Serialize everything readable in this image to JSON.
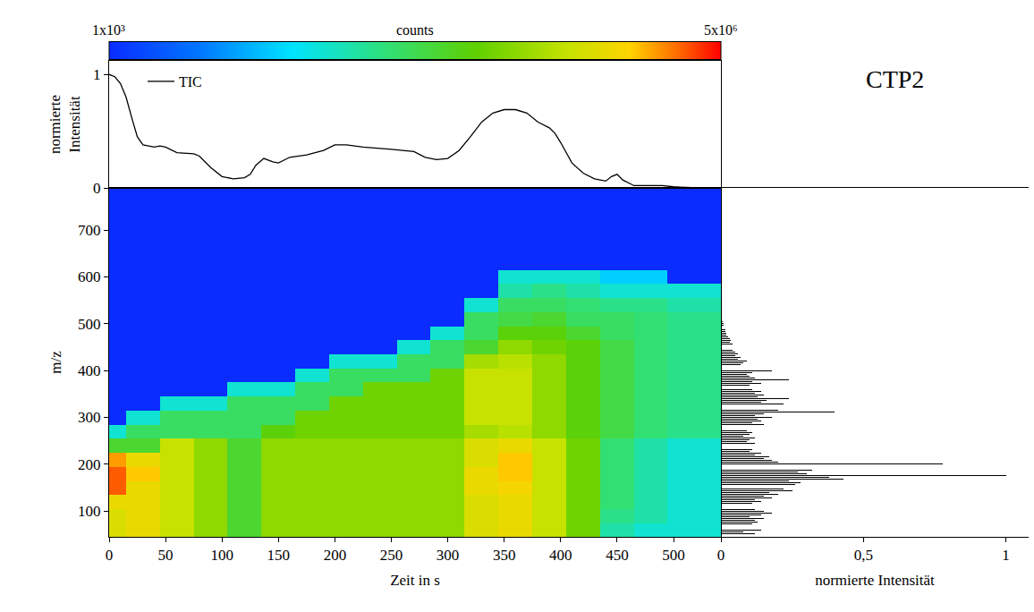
{
  "chart_data": [
    {
      "type": "line",
      "y_label": "normierte Intensität",
      "xlim": [
        0,
        542
      ],
      "ylim": [
        0,
        1.12
      ],
      "yticks": [
        0,
        1
      ],
      "tick_labels": "y",
      "legend": "top left",
      "series": [
        {
          "name": "TIC",
          "color": "#000000",
          "x": [
            0,
            5,
            10,
            15,
            20,
            25,
            30,
            40,
            45,
            50,
            60,
            70,
            75,
            80,
            90,
            100,
            110,
            120,
            125,
            130,
            137,
            145,
            150,
            160,
            175,
            190,
            200,
            210,
            225,
            250,
            270,
            280,
            290,
            300,
            310,
            320,
            330,
            340,
            350,
            360,
            370,
            380,
            390,
            395,
            400,
            410,
            420,
            430,
            440,
            445,
            450,
            455,
            465,
            480,
            490,
            500,
            520,
            540
          ],
          "values": [
            1,
            0.98,
            0.92,
            0.8,
            0.62,
            0.45,
            0.38,
            0.36,
            0.37,
            0.36,
            0.31,
            0.3,
            0.3,
            0.28,
            0.18,
            0.1,
            0.08,
            0.09,
            0.12,
            0.2,
            0.26,
            0.23,
            0.22,
            0.27,
            0.29,
            0.33,
            0.38,
            0.38,
            0.36,
            0.34,
            0.32,
            0.27,
            0.25,
            0.26,
            0.33,
            0.45,
            0.58,
            0.66,
            0.69,
            0.69,
            0.66,
            0.58,
            0.53,
            0.48,
            0.4,
            0.22,
            0.13,
            0.08,
            0.06,
            0.1,
            0.12,
            0.07,
            0.02,
            0.02,
            0.02,
            0.01,
            0,
            0
          ]
        }
      ]
    },
    {
      "type": "heatmap",
      "title": "CTP2",
      "x_label": "Zeit in s",
      "y_label": "m/z",
      "xlim": [
        0,
        542
      ],
      "xticks": [
        0,
        50,
        100,
        150,
        200,
        250,
        300,
        350,
        400,
        450,
        500
      ],
      "ylim": [
        45,
        790
      ],
      "yticks": [
        100,
        200,
        300,
        400,
        500,
        600,
        700
      ],
      "x": [
        0,
        30,
        60,
        90,
        120,
        150,
        180,
        210,
        240,
        270,
        300,
        330,
        360,
        390,
        420,
        450,
        480,
        510,
        540
      ],
      "y": [
        60,
        90,
        120,
        150,
        180,
        210,
        240,
        270,
        300,
        330,
        360,
        390,
        420,
        450,
        480,
        510,
        540,
        570,
        600,
        630,
        660,
        690,
        720,
        750,
        780
      ],
      "z": [
        [
          800000.0,
          1000000.0,
          600000.0,
          300000.0,
          100000.0,
          300000.0,
          300000.0,
          300000.0,
          300000.0,
          300000.0,
          300000.0,
          800000.0,
          1000000.0,
          600000.0,
          200000.0,
          30000.0,
          20000.0,
          20000.0,
          20000.0
        ],
        [
          800000.0,
          1000000.0,
          600000.0,
          300000.0,
          100000.0,
          300000.0,
          300000.0,
          300000.0,
          300000.0,
          300000.0,
          300000.0,
          800000.0,
          1000000.0,
          600000.0,
          200000.0,
          40000.0,
          30000.0,
          20000.0,
          20000.0
        ],
        [
          1000000.0,
          1000000.0,
          600000.0,
          300000.0,
          100000.0,
          300000.0,
          300000.0,
          300000.0,
          300000.0,
          300000.0,
          300000.0,
          800000.0,
          1000000.0,
          600000.0,
          200000.0,
          50000.0,
          30000.0,
          20000.0,
          20000.0
        ],
        [
          3000000.0,
          1000000.0,
          600000.0,
          300000.0,
          100000.0,
          300000.0,
          300000.0,
          300000.0,
          300000.0,
          300000.0,
          300000.0,
          1000000.0,
          1200000.0,
          600000.0,
          200000.0,
          50000.0,
          30000.0,
          20000.0,
          20000.0
        ],
        [
          3000000.0,
          1500000.0,
          600000.0,
          300000.0,
          100000.0,
          300000.0,
          300000.0,
          300000.0,
          300000.0,
          300000.0,
          300000.0,
          1000000.0,
          1500000.0,
          600000.0,
          200000.0,
          50000.0,
          30000.0,
          20000.0,
          20000.0
        ],
        [
          2000000.0,
          1000000.0,
          600000.0,
          300000.0,
          100000.0,
          300000.0,
          300000.0,
          300000.0,
          300000.0,
          300000.0,
          300000.0,
          800000.0,
          1500000.0,
          600000.0,
          200000.0,
          50000.0,
          30000.0,
          20000.0,
          20000.0
        ],
        [
          100000.0,
          100000.0,
          600000.0,
          300000.0,
          100000.0,
          300000.0,
          300000.0,
          300000.0,
          300000.0,
          300000.0,
          300000.0,
          800000.0,
          1000000.0,
          600000.0,
          200000.0,
          50000.0,
          30000.0,
          20000.0,
          20000.0
        ],
        [
          20000.0,
          60000.0,
          60000.0,
          60000.0,
          60000.0,
          150000.0,
          200000.0,
          200000.0,
          200000.0,
          200000.0,
          200000.0,
          400000.0,
          500000.0,
          300000.0,
          150000.0,
          80000.0,
          50000.0,
          40000.0,
          40000.0
        ],
        [
          1000.0,
          20000.0,
          60000.0,
          60000.0,
          60000.0,
          60000.0,
          200000.0,
          200000.0,
          200000.0,
          200000.0,
          200000.0,
          600000.0,
          600000.0,
          300000.0,
          150000.0,
          80000.0,
          50000.0,
          40000.0,
          40000.0
        ],
        [
          1000.0,
          1000.0,
          20000.0,
          20000.0,
          60000.0,
          60000.0,
          60000.0,
          200000.0,
          200000.0,
          200000.0,
          200000.0,
          600000.0,
          600000.0,
          300000.0,
          150000.0,
          80000.0,
          50000.0,
          40000.0,
          40000.0
        ],
        [
          1000.0,
          1000.0,
          1000.0,
          1000.0,
          20000.0,
          20000.0,
          60000.0,
          60000.0,
          200000.0,
          200000.0,
          200000.0,
          600000.0,
          600000.0,
          300000.0,
          150000.0,
          80000.0,
          50000.0,
          40000.0,
          40000.0
        ],
        [
          1000.0,
          1000.0,
          1000.0,
          1000.0,
          1000.0,
          1000.0,
          20000.0,
          60000.0,
          60000.0,
          60000.0,
          200000.0,
          600000.0,
          600000.0,
          300000.0,
          150000.0,
          80000.0,
          50000.0,
          40000.0,
          40000.0
        ],
        [
          1000.0,
          1000.0,
          1000.0,
          1000.0,
          1000.0,
          1000.0,
          1000.0,
          20000.0,
          20000.0,
          60000.0,
          60000.0,
          400000.0,
          500000.0,
          300000.0,
          150000.0,
          80000.0,
          50000.0,
          40000.0,
          40000.0
        ],
        [
          1000.0,
          1000.0,
          1000.0,
          1000.0,
          1000.0,
          1000.0,
          1000.0,
          1000.0,
          1000.0,
          20000.0,
          60000.0,
          100000.0,
          300000.0,
          200000.0,
          150000.0,
          80000.0,
          50000.0,
          40000.0,
          40000.0
        ],
        [
          1000.0,
          1000.0,
          1000.0,
          1000.0,
          1000.0,
          1000.0,
          1000.0,
          1000.0,
          1000.0,
          1000.0,
          20000.0,
          60000.0,
          150000.0,
          150000.0,
          100000.0,
          60000.0,
          50000.0,
          40000.0,
          40000.0
        ],
        [
          1000.0,
          1000.0,
          1000.0,
          1000.0,
          1000.0,
          1000.0,
          1000.0,
          1000.0,
          1000.0,
          1000.0,
          1000.0,
          60000.0,
          80000.0,
          100000.0,
          60000.0,
          60000.0,
          50000.0,
          40000.0,
          40000.0
        ],
        [
          1000.0,
          1000.0,
          1000.0,
          1000.0,
          1000.0,
          1000.0,
          1000.0,
          1000.0,
          1000.0,
          1000.0,
          1000.0,
          20000.0,
          60000.0,
          60000.0,
          50000.0,
          40000.0,
          40000.0,
          30000.0,
          30000.0
        ],
        [
          1000.0,
          1000.0,
          1000.0,
          1000.0,
          1000.0,
          1000.0,
          1000.0,
          1000.0,
          1000.0,
          1000.0,
          1000.0,
          1000.0,
          30000.0,
          40000.0,
          30000.0,
          20000.0,
          20000.0,
          20000.0,
          20000.0
        ],
        [
          1000.0,
          1000.0,
          1000.0,
          1000.0,
          1000.0,
          1000.0,
          1000.0,
          1000.0,
          1000.0,
          1000.0,
          1000.0,
          1000.0,
          20000.0,
          20000.0,
          20000.0,
          10000.0,
          10000.0,
          1000.0,
          1000.0
        ],
        [
          1000.0,
          1000.0,
          1000.0,
          1000.0,
          1000.0,
          1000.0,
          1000.0,
          1000.0,
          1000.0,
          1000.0,
          1000.0,
          1000.0,
          1000.0,
          1000.0,
          1000.0,
          1000.0,
          1000.0,
          1000.0,
          1000.0
        ],
        [
          1000.0,
          1000.0,
          1000.0,
          1000.0,
          1000.0,
          1000.0,
          1000.0,
          1000.0,
          1000.0,
          1000.0,
          1000.0,
          1000.0,
          1000.0,
          1000.0,
          1000.0,
          1000.0,
          1000.0,
          1000.0,
          1000.0
        ],
        [
          1000.0,
          1000.0,
          1000.0,
          1000.0,
          1000.0,
          1000.0,
          1000.0,
          1000.0,
          1000.0,
          1000.0,
          1000.0,
          1000.0,
          1000.0,
          1000.0,
          1000.0,
          1000.0,
          1000.0,
          1000.0,
          1000.0
        ],
        [
          1000.0,
          1000.0,
          1000.0,
          1000.0,
          1000.0,
          1000.0,
          1000.0,
          1000.0,
          1000.0,
          1000.0,
          1000.0,
          1000.0,
          1000.0,
          1000.0,
          1000.0,
          1000.0,
          1000.0,
          1000.0,
          1000.0
        ],
        [
          1000.0,
          1000.0,
          1000.0,
          1000.0,
          1000.0,
          1000.0,
          1000.0,
          1000.0,
          1000.0,
          1000.0,
          1000.0,
          1000.0,
          1000.0,
          1000.0,
          1000.0,
          1000.0,
          1000.0,
          1000.0,
          1000.0
        ],
        [
          1000.0,
          1000.0,
          1000.0,
          1000.0,
          1000.0,
          1000.0,
          1000.0,
          1000.0,
          1000.0,
          1000.0,
          1000.0,
          1000.0,
          1000.0,
          1000.0,
          1000.0,
          1000.0,
          1000.0,
          1000.0,
          1000.0
        ]
      ],
      "colorbar": {
        "title": "counts",
        "log": true,
        "range": [
          1000,
          5000000
        ],
        "ticks": [
          {
            "value": 1000,
            "label": "1x10³"
          },
          {
            "value": 5000000,
            "label": "5x10⁶"
          }
        ]
      }
    },
    {
      "type": "bar",
      "orientation": "horizontal",
      "color": "#000000",
      "x_label": "normierte Intensität",
      "xlim": [
        0,
        1.08
      ],
      "xticks": [
        0,
        {
          "value": 0.5,
          "label": "0,5"
        },
        1
      ],
      "ylim": [
        45,
        790
      ],
      "tick_labels": "x",
      "y": [
        52,
        56,
        60,
        64,
        68,
        72,
        76,
        80,
        84,
        88,
        92,
        96,
        100,
        104,
        108,
        112,
        116,
        120,
        124,
        128,
        132,
        136,
        140,
        144,
        148,
        152,
        156,
        160,
        164,
        168,
        172,
        176,
        180,
        184,
        188,
        192,
        196,
        200,
        204,
        208,
        212,
        216,
        220,
        224,
        228,
        232,
        236,
        240,
        244,
        248,
        252,
        256,
        260,
        264,
        268,
        272,
        276,
        280,
        284,
        288,
        292,
        296,
        300,
        304,
        308,
        312,
        316,
        320,
        324,
        328,
        332,
        336,
        340,
        344,
        348,
        352,
        356,
        360,
        364,
        368,
        372,
        376,
        380,
        384,
        388,
        392,
        396,
        400,
        404,
        408,
        412,
        416,
        420,
        424,
        428,
        432,
        436,
        440,
        444,
        448,
        452,
        456,
        460,
        464,
        468,
        472,
        476,
        480,
        484,
        488,
        492,
        496,
        500,
        504,
        508,
        512
      ],
      "values": [
        0.12,
        0.08,
        0.14,
        0.1,
        0.09,
        0.11,
        0.13,
        0.12,
        0.15,
        0.1,
        0.14,
        0.18,
        0.15,
        0.12,
        0.16,
        0.13,
        0.11,
        0.14,
        0.12,
        0.18,
        0.15,
        0.2,
        0.17,
        0.25,
        0.22,
        0.35,
        0.26,
        0.28,
        0.24,
        0.43,
        0.38,
        1,
        0.3,
        0.27,
        0.32,
        0.29,
        0.22,
        0.78,
        0.2,
        0.18,
        0.15,
        0.17,
        0.12,
        0.14,
        0.1,
        0.11,
        0.09,
        0.1,
        0.12,
        0.09,
        0.1,
        0.12,
        0.08,
        0.1,
        0.11,
        0.09,
        0.13,
        0.12,
        0.15,
        0.11,
        0.14,
        0.13,
        0.18,
        0.12,
        0.15,
        0.4,
        0.2,
        0.17,
        0.33,
        0.22,
        0.14,
        0.16,
        0.24,
        0.13,
        0.15,
        0.12,
        0.14,
        0.11,
        0.13,
        0.1,
        0.14,
        0.11,
        0.24,
        0.12,
        0.1,
        0.09,
        0.11,
        0.18,
        0.08,
        0.1,
        0.07,
        0.08,
        0.09,
        0.06,
        0.07,
        0.05,
        0.06,
        0.05,
        0.04,
        0.05,
        0.04,
        0.04,
        0.03,
        0.035,
        0.03,
        0.025,
        0.02,
        0.02,
        0.015,
        0.015,
        0.01,
        0.01,
        0.008,
        0.006,
        0.004,
        0.002
      ]
    }
  ]
}
